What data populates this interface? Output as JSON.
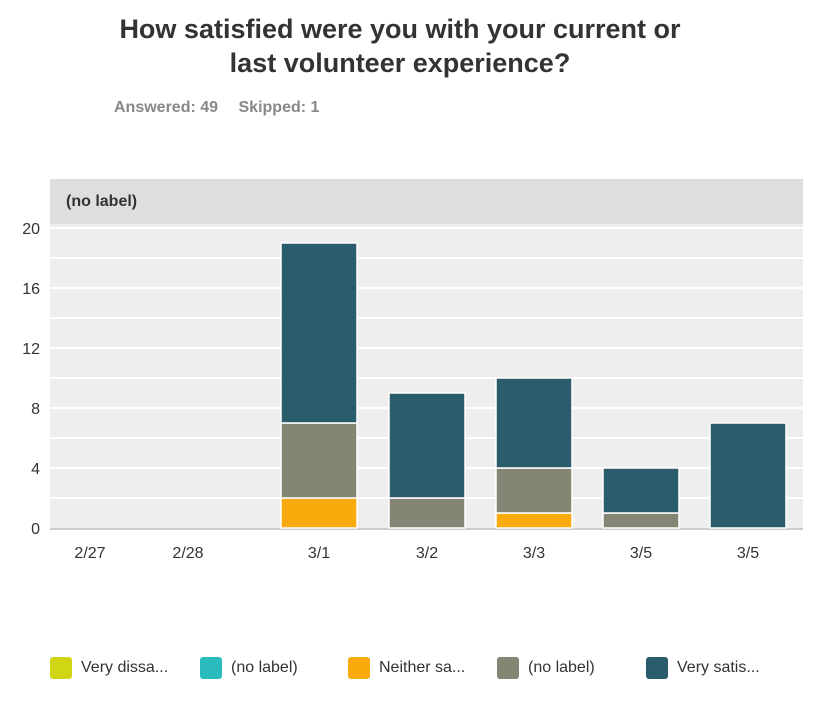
{
  "title_line1": "How satisfied were you with your current or",
  "title_line2": "last volunteer experience?",
  "answered": "Answered: 49",
  "skipped": "Skipped: 1",
  "chart_data": {
    "type": "bar",
    "stacked": true,
    "panel_label": "(no label)",
    "categories": [
      "2/27",
      "2/28",
      "3/1",
      "3/2",
      "3/3",
      "3/5",
      "3/5"
    ],
    "ylim": [
      0,
      20
    ],
    "yticks": [
      0,
      4,
      8,
      12,
      16,
      20
    ],
    "grid": true,
    "legend_position": "bottom",
    "series": [
      {
        "name": "Very dissa...",
        "color": "#d0d514",
        "values": [
          0,
          0,
          0,
          0,
          0,
          0,
          0
        ]
      },
      {
        "name": "(no label)",
        "color": "#2bbbbc",
        "values": [
          0,
          0,
          0,
          0,
          0,
          0,
          0
        ]
      },
      {
        "name": "Neither sa...",
        "color": "#f9ab0e",
        "values": [
          0,
          0,
          2,
          0,
          1,
          0,
          0
        ]
      },
      {
        "name": "(no label)",
        "color": "#858573",
        "values": [
          0,
          0,
          5,
          2,
          3,
          1,
          0
        ]
      },
      {
        "name": "Very satis...",
        "color": "#2b5c6b",
        "values": [
          0,
          0,
          12,
          7,
          6,
          3,
          7
        ]
      }
    ]
  }
}
